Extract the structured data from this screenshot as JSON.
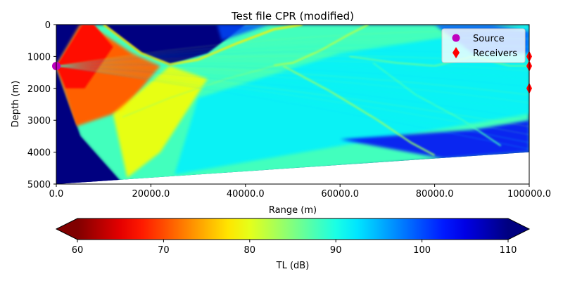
{
  "chart_data": {
    "type": "heatmap",
    "title": "Test file CPR (modified)",
    "xlabel": "Range (m)",
    "ylabel": "Depth (m)",
    "xlim": [
      0,
      100000
    ],
    "ylim": [
      5000,
      0
    ],
    "x_ticks": [
      {
        "value": 0,
        "label": "0.0"
      },
      {
        "value": 20000,
        "label": "20000.0"
      },
      {
        "value": 40000,
        "label": "40000.0"
      },
      {
        "value": 60000,
        "label": "60000.0"
      },
      {
        "value": 80000,
        "label": "80000.0"
      },
      {
        "value": 100000,
        "label": "100000.0"
      }
    ],
    "y_ticks": [
      {
        "value": 0,
        "label": "0"
      },
      {
        "value": 1000,
        "label": "1000"
      },
      {
        "value": 2000,
        "label": "2000"
      },
      {
        "value": 3000,
        "label": "3000"
      },
      {
        "value": 4000,
        "label": "4000"
      },
      {
        "value": 5000,
        "label": "5000"
      }
    ],
    "bathymetry": {
      "range": [
        0,
        100000
      ],
      "depth": [
        5000,
        4000
      ]
    },
    "source": {
      "name": "Source",
      "color": "#bf00bf",
      "points": [
        {
          "range": 0,
          "depth": 1300
        }
      ]
    },
    "receivers": {
      "name": "Receivers",
      "color": "#ff0000",
      "points": [
        {
          "range": 100000,
          "depth": 1000
        },
        {
          "range": 100000,
          "depth": 1300
        },
        {
          "range": 100000,
          "depth": 2000
        }
      ]
    },
    "legend": {
      "position": "top-right",
      "entries": [
        "Source",
        "Receivers"
      ]
    },
    "colorbar": {
      "label": "TL (dB)",
      "colormap": "jet_r",
      "range": [
        60,
        110
      ],
      "extend": "both",
      "ticks": [
        {
          "value": 60,
          "label": "60"
        },
        {
          "value": 70,
          "label": "70"
        },
        {
          "value": 80,
          "label": "80"
        },
        {
          "value": 90,
          "label": "90"
        },
        {
          "value": 100,
          "label": "100"
        },
        {
          "value": 110,
          "label": "110"
        }
      ]
    },
    "field_background_tl": 110
  }
}
